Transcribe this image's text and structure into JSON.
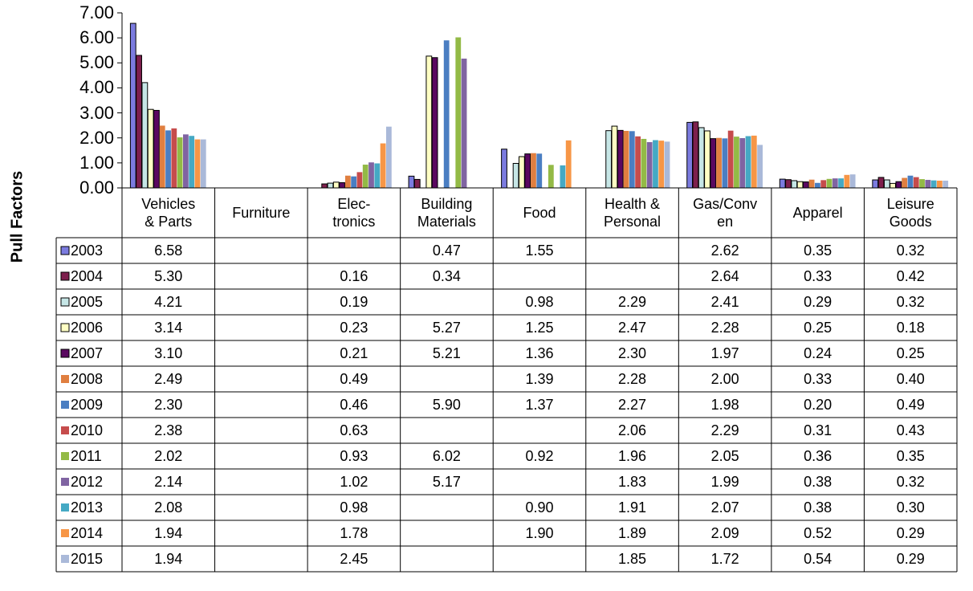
{
  "chart_data": {
    "type": "bar",
    "y_label": "Pull Factors",
    "categories": [
      "Vehicles\n& Parts",
      "Furniture",
      "Elec-\ntronics",
      "Building\nMaterials",
      "Food",
      "Health &\nPersonal",
      "Gas/Conv\nen",
      "Apparel",
      "Leisure\nGoods"
    ],
    "ylim": [
      0,
      7
    ],
    "yticks": [
      {
        "value": 0,
        "label": "0.00"
      },
      {
        "value": 1,
        "label": "1.00"
      },
      {
        "value": 2,
        "label": "2.00"
      },
      {
        "value": 3,
        "label": "3.00"
      },
      {
        "value": 4,
        "label": "4.00"
      },
      {
        "value": 5,
        "label": "5.00"
      },
      {
        "value": 6,
        "label": "6.00"
      },
      {
        "value": 7,
        "label": "7.00"
      }
    ],
    "grid": false,
    "series": [
      {
        "name": "2003",
        "color": "#7b7bdf",
        "edgecolor": "#000000",
        "values": [
          6.58,
          null,
          null,
          0.47,
          1.55,
          null,
          2.62,
          0.35,
          0.32
        ],
        "value_labels": [
          "6.58",
          null,
          null,
          "0.47",
          "1.55",
          null,
          "2.62",
          "0.35",
          "0.32"
        ]
      },
      {
        "name": "2004",
        "color": "#7d1f4d",
        "edgecolor": "#000000",
        "values": [
          5.3,
          null,
          0.16,
          0.34,
          null,
          null,
          2.64,
          0.33,
          0.42
        ],
        "value_labels": [
          "5.30",
          null,
          "0.16",
          "0.34",
          null,
          null,
          "2.64",
          "0.33",
          "0.42"
        ]
      },
      {
        "name": "2005",
        "color": "#c6e6e6",
        "edgecolor": "#000000",
        "values": [
          4.21,
          null,
          0.19,
          null,
          0.98,
          2.29,
          2.41,
          0.29,
          0.32
        ],
        "value_labels": [
          "4.21",
          null,
          "0.19",
          null,
          "0.98",
          "2.29",
          "2.41",
          "0.29",
          "0.32"
        ]
      },
      {
        "name": "2006",
        "color": "#ffffc4",
        "edgecolor": "#000000",
        "values": [
          3.14,
          null,
          0.23,
          5.27,
          1.25,
          2.47,
          2.28,
          0.25,
          0.18
        ],
        "value_labels": [
          "3.14",
          null,
          "0.23",
          "5.27",
          "1.25",
          "2.47",
          "2.28",
          "0.25",
          "0.18"
        ]
      },
      {
        "name": "2007",
        "color": "#5a0860",
        "edgecolor": "#000000",
        "values": [
          3.1,
          null,
          0.21,
          5.21,
          1.36,
          2.3,
          1.97,
          0.24,
          0.25
        ],
        "value_labels": [
          "3.10",
          null,
          "0.21",
          "5.21",
          "1.36",
          "2.30",
          "1.97",
          "0.24",
          "0.25"
        ]
      },
      {
        "name": "2008",
        "color": "#e07f40",
        "values": [
          2.49,
          null,
          0.49,
          null,
          1.39,
          2.28,
          2.0,
          0.33,
          0.4
        ],
        "value_labels": [
          "2.49",
          null,
          "0.49",
          null,
          "1.39",
          "2.28",
          "2.00",
          "0.33",
          "0.40"
        ]
      },
      {
        "name": "2009",
        "color": "#4a7ec2",
        "values": [
          2.3,
          null,
          0.46,
          5.9,
          1.37,
          2.27,
          1.98,
          0.2,
          0.49
        ],
        "value_labels": [
          "2.30",
          null,
          "0.46",
          "5.90",
          "1.37",
          "2.27",
          "1.98",
          "0.20",
          "0.49"
        ]
      },
      {
        "name": "2010",
        "color": "#c64c4c",
        "values": [
          2.38,
          null,
          0.63,
          null,
          null,
          2.06,
          2.29,
          0.31,
          0.43
        ],
        "value_labels": [
          "2.38",
          null,
          "0.63",
          null,
          null,
          "2.06",
          "2.29",
          "0.31",
          "0.43"
        ]
      },
      {
        "name": "2011",
        "color": "#93ba46",
        "values": [
          2.02,
          null,
          0.93,
          6.02,
          0.92,
          1.96,
          2.05,
          0.36,
          0.35
        ],
        "value_labels": [
          "2.02",
          null,
          "0.93",
          "6.02",
          "0.92",
          "1.96",
          "2.05",
          "0.36",
          "0.35"
        ]
      },
      {
        "name": "2012",
        "color": "#8064a2",
        "values": [
          2.14,
          null,
          1.02,
          5.17,
          null,
          1.83,
          1.99,
          0.38,
          0.32
        ],
        "value_labels": [
          "2.14",
          null,
          "1.02",
          "5.17",
          null,
          "1.83",
          "1.99",
          "0.38",
          "0.32"
        ]
      },
      {
        "name": "2013",
        "color": "#45a9c4",
        "values": [
          2.08,
          null,
          0.98,
          null,
          0.9,
          1.91,
          2.07,
          0.38,
          0.3
        ],
        "value_labels": [
          "2.08",
          null,
          "0.98",
          null,
          "0.90",
          "1.91",
          "2.07",
          "0.38",
          "0.30"
        ]
      },
      {
        "name": "2014",
        "color": "#f79646",
        "values": [
          1.94,
          null,
          1.78,
          null,
          1.9,
          1.89,
          2.09,
          0.52,
          0.29
        ],
        "value_labels": [
          "1.94",
          null,
          "1.78",
          null,
          "1.90",
          "1.89",
          "2.09",
          "0.52",
          "0.29"
        ]
      },
      {
        "name": "2015",
        "color": "#aab9d9",
        "values": [
          1.94,
          null,
          2.45,
          null,
          null,
          1.85,
          1.72,
          0.54,
          0.29
        ],
        "value_labels": [
          "1.94",
          null,
          "2.45",
          null,
          null,
          "1.85",
          "1.72",
          "0.54",
          "0.29"
        ]
      }
    ]
  }
}
